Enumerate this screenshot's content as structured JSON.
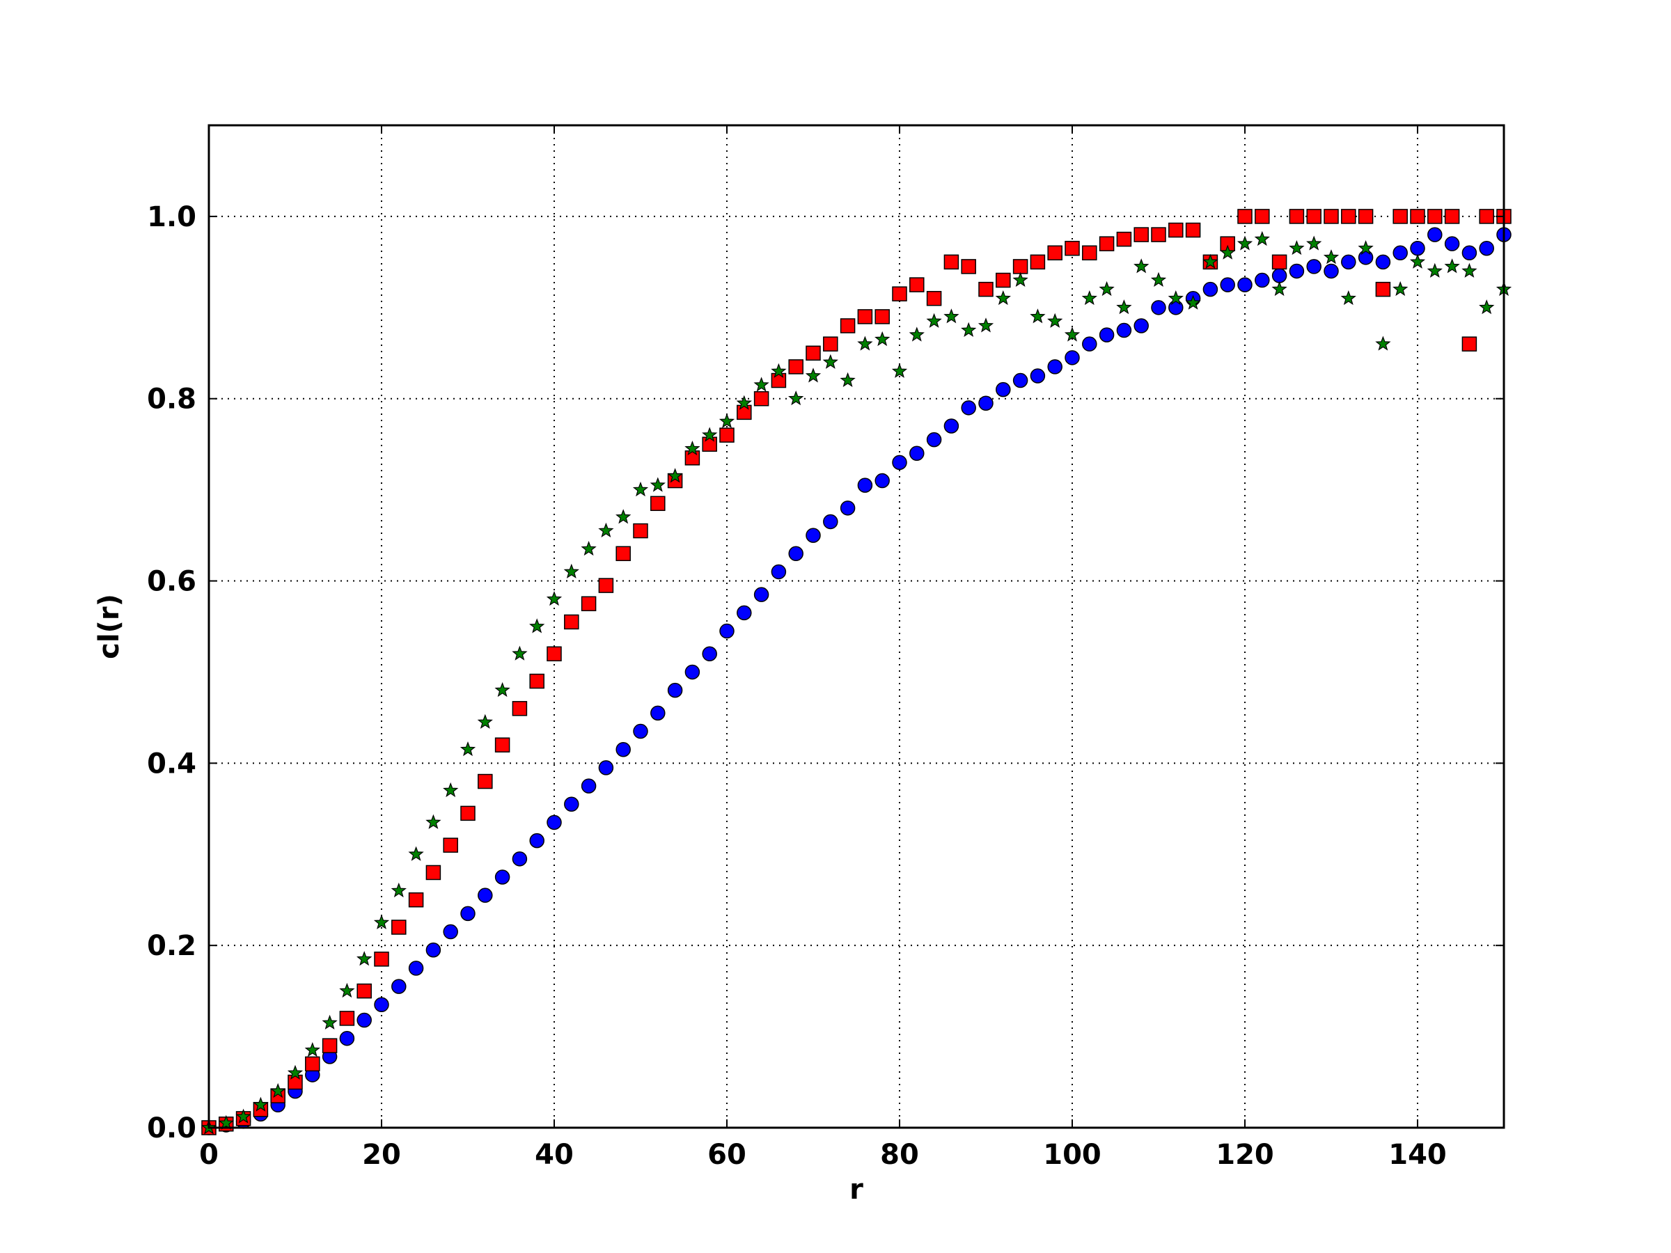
{
  "chart_data": {
    "type": "scatter",
    "title": "",
    "xlabel": "r",
    "ylabel": "cl(r)",
    "xlim": [
      0,
      150
    ],
    "ylim": [
      0,
      1.1
    ],
    "xticks": [
      0,
      20,
      40,
      60,
      80,
      100,
      120,
      140
    ],
    "yticks": [
      0.0,
      0.2,
      0.4,
      0.6,
      0.8,
      1.0
    ],
    "xtick_labels": [
      "0",
      "20",
      "40",
      "60",
      "80",
      "100",
      "120",
      "140"
    ],
    "ytick_labels": [
      "0.0",
      "0.2",
      "0.4",
      "0.6",
      "0.8",
      "1.0"
    ],
    "grid": true,
    "legend": "none",
    "series": [
      {
        "marker": "circle",
        "color": "#0000ff",
        "x": [
          0,
          2,
          4,
          6,
          8,
          10,
          12,
          14,
          16,
          18,
          20,
          22,
          24,
          26,
          28,
          30,
          32,
          34,
          36,
          38,
          40,
          42,
          44,
          46,
          48,
          50,
          52,
          54,
          56,
          58,
          60,
          62,
          64,
          66,
          68,
          70,
          72,
          74,
          76,
          78,
          80,
          82,
          84,
          86,
          88,
          90,
          92,
          94,
          96,
          98,
          100,
          102,
          104,
          106,
          108,
          110,
          112,
          114,
          116,
          118,
          120,
          122,
          124,
          126,
          128,
          130,
          132,
          134,
          136,
          138,
          140,
          142,
          144,
          146,
          148,
          150
        ],
        "y": [
          0.0,
          0.003,
          0.007,
          0.015,
          0.025,
          0.04,
          0.058,
          0.078,
          0.098,
          0.118,
          0.135,
          0.155,
          0.175,
          0.195,
          0.215,
          0.235,
          0.255,
          0.275,
          0.295,
          0.315,
          0.335,
          0.355,
          0.375,
          0.395,
          0.415,
          0.435,
          0.455,
          0.48,
          0.5,
          0.52,
          0.545,
          0.565,
          0.585,
          0.61,
          0.63,
          0.65,
          0.665,
          0.68,
          0.705,
          0.71,
          0.73,
          0.74,
          0.755,
          0.77,
          0.79,
          0.795,
          0.81,
          0.82,
          0.825,
          0.835,
          0.845,
          0.86,
          0.87,
          0.875,
          0.88,
          0.9,
          0.9,
          0.91,
          0.92,
          0.925,
          0.925,
          0.93,
          0.935,
          0.94,
          0.945,
          0.94,
          0.95,
          0.955,
          0.95,
          0.96,
          0.965,
          0.98,
          0.97,
          0.96,
          0.965,
          0.98
        ]
      },
      {
        "marker": "square",
        "color": "#ff0000",
        "x": [
          0,
          2,
          4,
          6,
          8,
          10,
          12,
          14,
          16,
          18,
          20,
          22,
          24,
          26,
          28,
          30,
          32,
          34,
          36,
          38,
          40,
          42,
          44,
          46,
          48,
          50,
          52,
          54,
          56,
          58,
          60,
          62,
          64,
          66,
          68,
          70,
          72,
          74,
          76,
          78,
          80,
          82,
          84,
          86,
          88,
          90,
          92,
          94,
          96,
          98,
          100,
          102,
          104,
          106,
          108,
          110,
          112,
          114,
          116,
          118,
          120,
          122,
          124,
          126,
          128,
          130,
          132,
          134,
          136,
          138,
          140,
          142,
          144,
          146,
          148,
          150
        ],
        "y": [
          0.0,
          0.004,
          0.01,
          0.02,
          0.035,
          0.05,
          0.07,
          0.09,
          0.12,
          0.15,
          0.185,
          0.22,
          0.25,
          0.28,
          0.31,
          0.345,
          0.38,
          0.42,
          0.46,
          0.49,
          0.52,
          0.555,
          0.575,
          0.595,
          0.63,
          0.655,
          0.685,
          0.71,
          0.735,
          0.75,
          0.76,
          0.785,
          0.8,
          0.82,
          0.835,
          0.85,
          0.86,
          0.88,
          0.89,
          0.89,
          0.915,
          0.925,
          0.91,
          0.95,
          0.945,
          0.92,
          0.93,
          0.945,
          0.95,
          0.96,
          0.965,
          0.96,
          0.97,
          0.975,
          0.98,
          0.98,
          0.985,
          0.985,
          0.95,
          0.97,
          1.0,
          1.0,
          0.95,
          1.0,
          1.0,
          1.0,
          1.0,
          1.0,
          0.92,
          1.0,
          1.0,
          1.0,
          1.0,
          0.86,
          1.0,
          1.0
        ]
      },
      {
        "marker": "star",
        "color": "#008000",
        "x": [
          0,
          2,
          4,
          6,
          8,
          10,
          12,
          14,
          16,
          18,
          20,
          22,
          24,
          26,
          28,
          30,
          32,
          34,
          36,
          38,
          40,
          42,
          44,
          46,
          48,
          50,
          52,
          54,
          56,
          58,
          60,
          62,
          64,
          66,
          68,
          70,
          72,
          74,
          76,
          78,
          80,
          82,
          84,
          86,
          88,
          90,
          92,
          94,
          96,
          98,
          100,
          102,
          104,
          106,
          108,
          110,
          112,
          114,
          116,
          118,
          120,
          122,
          124,
          126,
          128,
          130,
          132,
          134,
          136,
          138,
          140,
          142,
          144,
          146,
          148,
          150
        ],
        "y": [
          0.0,
          0.005,
          0.012,
          0.025,
          0.04,
          0.06,
          0.085,
          0.115,
          0.15,
          0.185,
          0.225,
          0.26,
          0.3,
          0.335,
          0.37,
          0.415,
          0.445,
          0.48,
          0.52,
          0.55,
          0.58,
          0.61,
          0.635,
          0.655,
          0.67,
          0.7,
          0.705,
          0.715,
          0.745,
          0.76,
          0.775,
          0.795,
          0.815,
          0.83,
          0.8,
          0.825,
          0.84,
          0.82,
          0.86,
          0.865,
          0.83,
          0.87,
          0.885,
          0.89,
          0.875,
          0.88,
          0.91,
          0.93,
          0.89,
          0.885,
          0.87,
          0.91,
          0.92,
          0.9,
          0.945,
          0.93,
          0.91,
          0.905,
          0.95,
          0.96,
          0.97,
          0.975,
          0.92,
          0.965,
          0.97,
          0.955,
          0.91,
          0.965,
          0.86,
          0.92,
          0.95,
          0.94,
          0.945,
          0.94,
          0.9,
          0.92
        ]
      }
    ]
  }
}
